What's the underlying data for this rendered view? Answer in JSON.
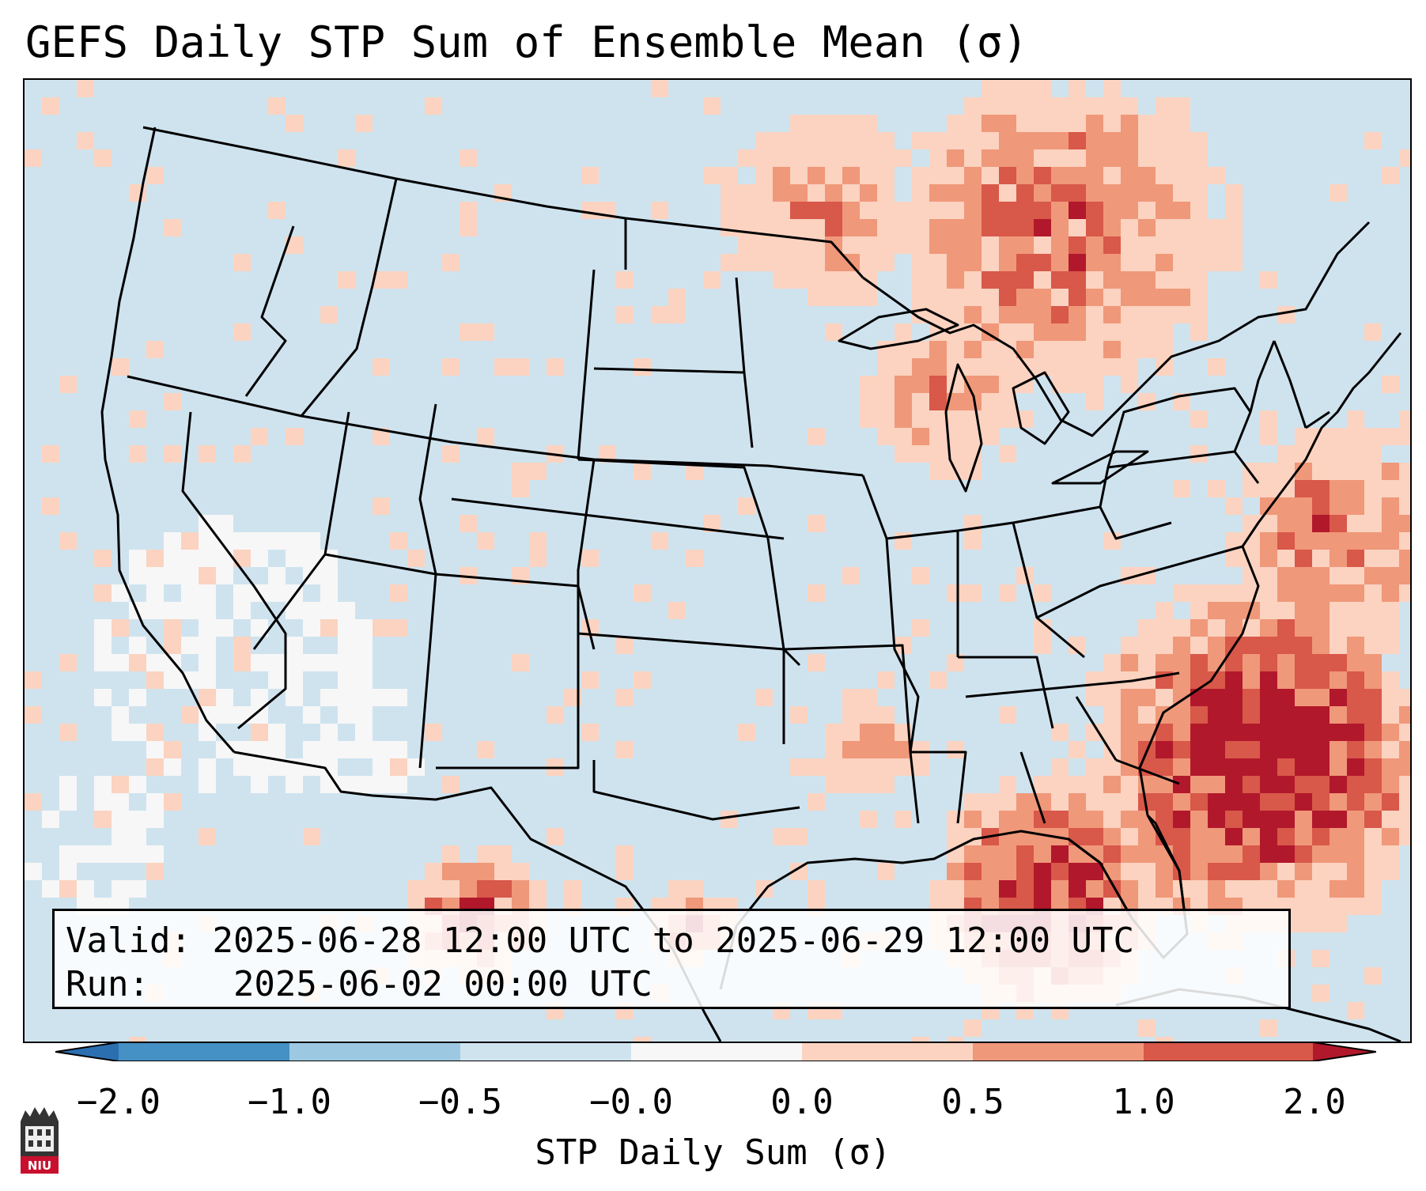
{
  "title": "GEFS Daily STP Sum of Ensemble Mean (σ)",
  "info": {
    "valid_label": "Valid:",
    "valid_value": "2025-06-28 12:00 UTC to 2025-06-29 12:00 UTC",
    "run_label": "Run:",
    "run_value": "2025-06-02 00:00 UTC"
  },
  "colorbar": {
    "label": "STP Daily Sum (σ)",
    "ticks": [
      "−2.0",
      "−1.0",
      "−0.5",
      "−0.0",
      "0.0",
      "0.5",
      "1.0",
      "2.0"
    ],
    "colors": {
      "below": "#2b6fb0",
      "b1": "#4590c4",
      "b2": "#9cc9e1",
      "b3": "#cfe3ef",
      "b4": "#f7f7f7",
      "b5": "#fbd3c0",
      "b6": "#f0987a",
      "b7": "#d8584a",
      "above": "#b2182b"
    }
  },
  "logo": {
    "text": "NIU",
    "color": "#c8102e"
  },
  "map_colors": {
    "background": "#cfe3ef",
    "light_positive": "#fbd3c0",
    "moderate_positive": "#f0987a",
    "strong_positive": "#d8584a",
    "extreme_positive": "#b2182b",
    "neutral": "#f7f7f7",
    "negative": "#9cc9e1"
  }
}
